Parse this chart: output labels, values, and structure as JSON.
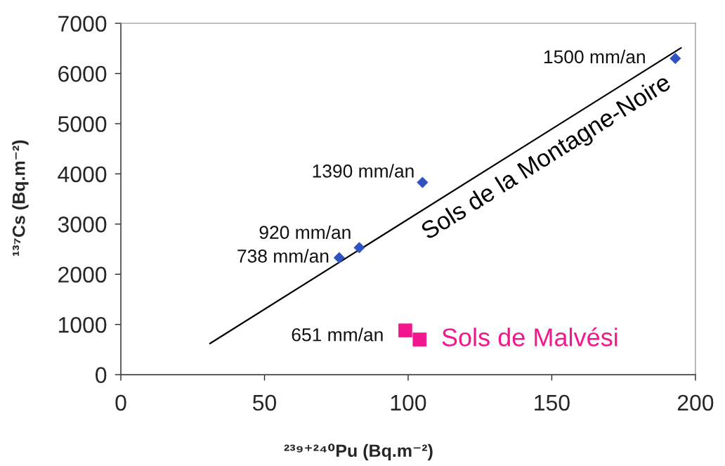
{
  "chart_data": {
    "type": "scatter",
    "xlabel": "²³⁹⁺²⁴⁰Pu (Bq.m⁻²)",
    "ylabel": "¹³⁷Cs (Bq.m⁻²)",
    "xlim": [
      0,
      200
    ],
    "ylim": [
      0,
      7000
    ],
    "xticks": [
      0,
      50,
      100,
      150,
      200
    ],
    "yticks": [
      0,
      1000,
      2000,
      3000,
      4000,
      5000,
      6000,
      7000
    ],
    "grid": false,
    "legend": false,
    "series": [
      {
        "marker": "diamond",
        "color": "#2f52c0",
        "x": [
          76,
          83,
          105,
          193
        ],
        "values": [
          2330,
          2530,
          3830,
          6300
        ]
      },
      {
        "name": "Sols de Malvési",
        "marker": "square",
        "color": "#f0188c",
        "x": [
          99,
          104
        ],
        "values": [
          880,
          700
        ]
      },
      {
        "type": "line",
        "name": "Sols de la Montagne-Noire",
        "color": "#000000",
        "marker": "none",
        "line_style": "solid",
        "x": [
          31,
          195
        ],
        "values": [
          620,
          6510
        ]
      }
    ],
    "annotations": [
      {
        "text": "738 mm/an",
        "x": 76,
        "y": 2330
      },
      {
        "text": "920 mm/an",
        "x": 83,
        "y": 2530
      },
      {
        "text": "1390 mm/an",
        "x": 105,
        "y": 3830
      },
      {
        "text": "1500 mm/an",
        "x": 193,
        "y": 6300
      },
      {
        "text": "651 mm/an",
        "x": 99,
        "y": 880
      }
    ]
  }
}
